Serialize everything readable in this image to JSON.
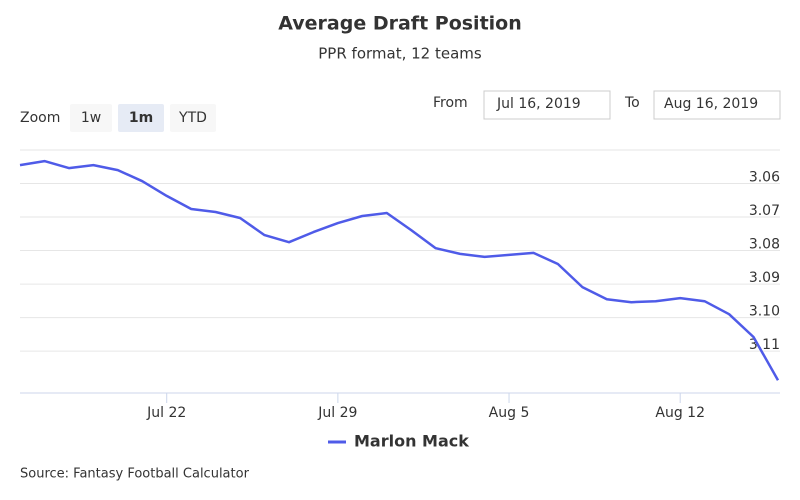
{
  "chart_data": {
    "type": "line",
    "title": "Average Draft Position",
    "subtitle": "PPR format, 12 teams",
    "categories": [
      null,
      null,
      null,
      null,
      null,
      null,
      "Jul 22",
      null,
      null,
      null,
      null,
      null,
      null,
      "Jul 29",
      null,
      null,
      null,
      null,
      null,
      null,
      "Aug 5",
      null,
      null,
      null,
      null,
      null,
      null,
      "Aug 12",
      null,
      null,
      null,
      null
    ],
    "series": [
      {
        "name": "Marlon Mack",
        "color": "#4f5be8",
        "values": [
          3.0545,
          3.0533,
          3.0554,
          3.0545,
          3.056,
          3.0593,
          3.0637,
          3.0676,
          3.0685,
          3.0703,
          3.0754,
          3.0775,
          3.0745,
          3.0718,
          3.0697,
          3.0688,
          3.0739,
          3.0793,
          3.081,
          3.0819,
          3.0813,
          3.0807,
          3.084,
          3.0909,
          3.0945,
          3.0954,
          3.0951,
          3.0942,
          3.0951,
          3.099,
          3.1058,
          3.1187
        ]
      }
    ],
    "ylim": [
      3.05,
      3.1225
    ],
    "y_reversed": true,
    "yticks": [
      3.06,
      3.07,
      3.08,
      3.09,
      {
        "value": 3.1,
        "label": "3.10"
      },
      3.11
    ],
    "grid": true,
    "source": "Source: Fantasy Football Calculator"
  },
  "ui": {
    "zoom_label": "Zoom",
    "zoom_buttons": [
      "1w",
      "1m",
      "YTD"
    ],
    "zoom_selected": 1,
    "from_label": "From",
    "from_date": "Jul 16, 2019",
    "to_label": "To",
    "to_date": "Aug 16, 2019"
  }
}
